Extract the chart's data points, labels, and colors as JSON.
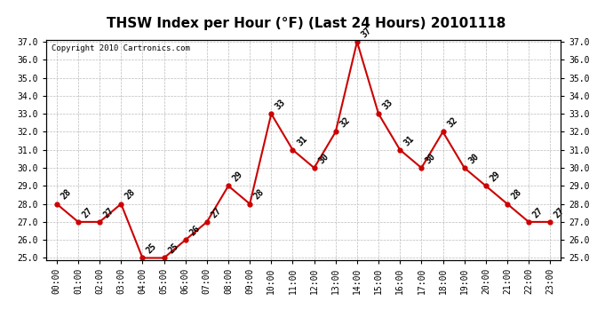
{
  "title": "THSW Index per Hour (°F) (Last 24 Hours) 20101118",
  "copyright": "Copyright 2010 Cartronics.com",
  "hours": [
    "00:00",
    "01:00",
    "02:00",
    "03:00",
    "04:00",
    "05:00",
    "06:00",
    "07:00",
    "08:00",
    "09:00",
    "10:00",
    "11:00",
    "12:00",
    "13:00",
    "14:00",
    "15:00",
    "16:00",
    "17:00",
    "18:00",
    "19:00",
    "20:00",
    "21:00",
    "22:00",
    "23:00"
  ],
  "values": [
    28,
    27,
    27,
    28,
    25,
    25,
    26,
    27,
    29,
    28,
    33,
    31,
    30,
    32,
    37,
    33,
    31,
    30,
    32,
    30,
    29,
    28,
    27,
    27
  ],
  "ylim_min": 25.0,
  "ylim_max": 37.0,
  "yticks": [
    25.0,
    26.0,
    27.0,
    28.0,
    29.0,
    30.0,
    31.0,
    32.0,
    33.0,
    34.0,
    35.0,
    36.0,
    37.0
  ],
  "line_color": "#cc0000",
  "marker_color": "#cc0000",
  "grid_color": "#bbbbbb",
  "bg_color": "#ffffff",
  "title_fontsize": 11,
  "tick_fontsize": 7,
  "label_fontsize": 7,
  "copyright_fontsize": 6.5
}
